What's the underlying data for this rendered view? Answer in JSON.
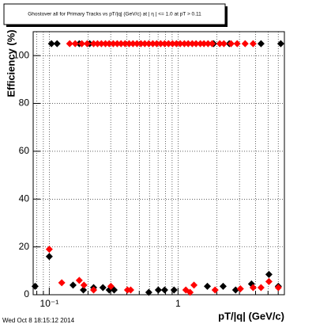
{
  "chart_data": {
    "type": "scatter",
    "title": "Ghostover all for Primary Tracks vs pT/|q| (GeV/c) at | η | <= 1.0 at pT > 0.11",
    "x_label": "pT/|q| (GeV/c)",
    "y_label": "Efficiency (%)",
    "footer": "Wed Oct  8 18:15:12 2014",
    "x_scale": "log",
    "grid": true,
    "xlim": [
      0.075,
      6.7
    ],
    "ylim": [
      0,
      110
    ],
    "xticks": [
      {
        "value": 0.1,
        "label": "10⁻¹"
      },
      1
    ],
    "xminorticks": [
      0.08,
      0.09,
      0.2,
      0.3,
      0.4,
      0.5,
      0.6,
      0.7,
      0.8,
      0.9,
      2,
      3,
      4,
      5,
      6
    ],
    "yticks": [
      0,
      20,
      40,
      60,
      80,
      100
    ],
    "series": [
      {
        "color": "#000000",
        "x": [
          0.104,
          0.115,
          0.171,
          0.206,
          1.89,
          2.5,
          4.41,
          6.28,
          0.0776,
          0.1,
          0.153,
          0.184,
          0.221,
          0.261,
          0.292,
          0.319,
          0.593,
          0.703,
          0.787,
          0.931,
          1.69,
          2.24,
          2.8,
          3.72,
          5.08,
          6.01
        ],
        "values": [
          105,
          105,
          105,
          105,
          105,
          105,
          105,
          105,
          3.5,
          16,
          4,
          2,
          3,
          3,
          2,
          2,
          1,
          2,
          2,
          2,
          3.5,
          3.5,
          2,
          4.5,
          8.5,
          3.5
        ]
      },
      {
        "color": "#ff0000",
        "x": [
          0.144,
          0.159,
          0.179,
          0.197,
          0.221,
          0.237,
          0.254,
          0.273,
          0.292,
          0.314,
          0.337,
          0.361,
          0.388,
          0.417,
          0.447,
          0.48,
          0.515,
          0.552,
          0.593,
          0.637,
          0.683,
          0.733,
          0.787,
          0.844,
          0.906,
          0.972,
          1.04,
          1.12,
          1.2,
          1.29,
          1.38,
          1.49,
          1.59,
          1.71,
          1.84,
          2.11,
          2.27,
          2.58,
          2.88,
          3.32,
          3.83,
          0.1,
          0.125,
          0.171,
          0.186,
          0.221,
          0.301,
          0.405,
          0.429,
          1.15,
          1.24,
          1.33,
          1.94,
          3.05,
          3.83,
          4.41,
          5.08,
          6.01
        ],
        "values": [
          105,
          105,
          105,
          105,
          105,
          105,
          105,
          105,
          105,
          105,
          105,
          105,
          105,
          105,
          105,
          105,
          105,
          105,
          105,
          105,
          105,
          105,
          105,
          105,
          105,
          105,
          105,
          105,
          105,
          105,
          105,
          105,
          105,
          105,
          105,
          105,
          105,
          105,
          105,
          105,
          105,
          19,
          5,
          6,
          4,
          2,
          3.5,
          2,
          2,
          2,
          1,
          4,
          2,
          2.5,
          3,
          3,
          5.5,
          3
        ]
      }
    ]
  }
}
